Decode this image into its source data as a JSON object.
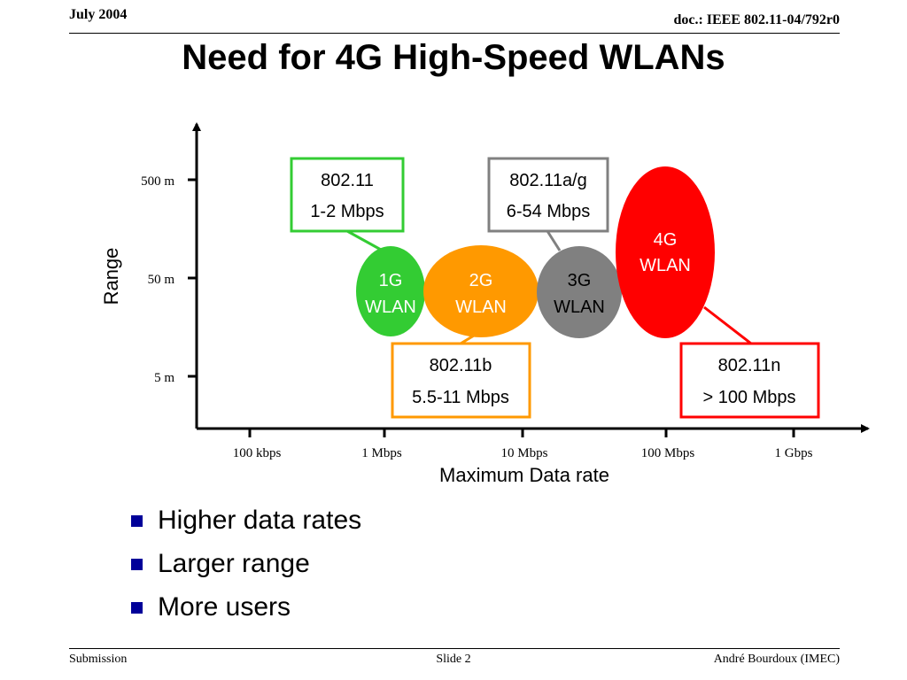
{
  "header": {
    "date": "July 2004",
    "doc": "doc.: IEEE 802.11-04/792r0"
  },
  "title": "Need for 4G High-Speed WLANs",
  "diagram": {
    "y_axis_label": "Range",
    "x_axis_label": "Maximum Data rate",
    "y_ticks": [
      "500 m",
      "50 m",
      "5 m"
    ],
    "x_ticks": [
      "100 kbps",
      "1 Mbps",
      "10 Mbps",
      "100 Mbps",
      "1 Gbps"
    ],
    "bubbles": [
      {
        "line1": "1G",
        "line2": "WLAN",
        "fill": "#33cc33",
        "text_color": "#ffffff"
      },
      {
        "line1": "2G",
        "line2": "WLAN",
        "fill": "#ff9900",
        "text_color": "#ffffff"
      },
      {
        "line1": "3G",
        "line2": "WLAN",
        "fill": "#808080",
        "text_color": "#000000"
      },
      {
        "line1": "4G",
        "line2": "WLAN",
        "fill": "#ff0000",
        "text_color": "#ffffff"
      }
    ],
    "callouts": [
      {
        "line1": "802.11",
        "line2": "1-2 Mbps",
        "border": "#33cc33"
      },
      {
        "line1": "802.11a/g",
        "line2": "6-54 Mbps",
        "border": "#808080"
      },
      {
        "line1": "802.11b",
        "line2": "5.5-11 Mbps",
        "border": "#ff9900"
      },
      {
        "line1": "802.11n",
        "line2": "> 100 Mbps",
        "border": "#ff0000"
      }
    ]
  },
  "bullets": [
    "Higher data rates",
    "Larger range",
    "More users"
  ],
  "footer": {
    "left": "Submission",
    "center": "Slide 2",
    "right": "André Bourdoux (IMEC)"
  }
}
